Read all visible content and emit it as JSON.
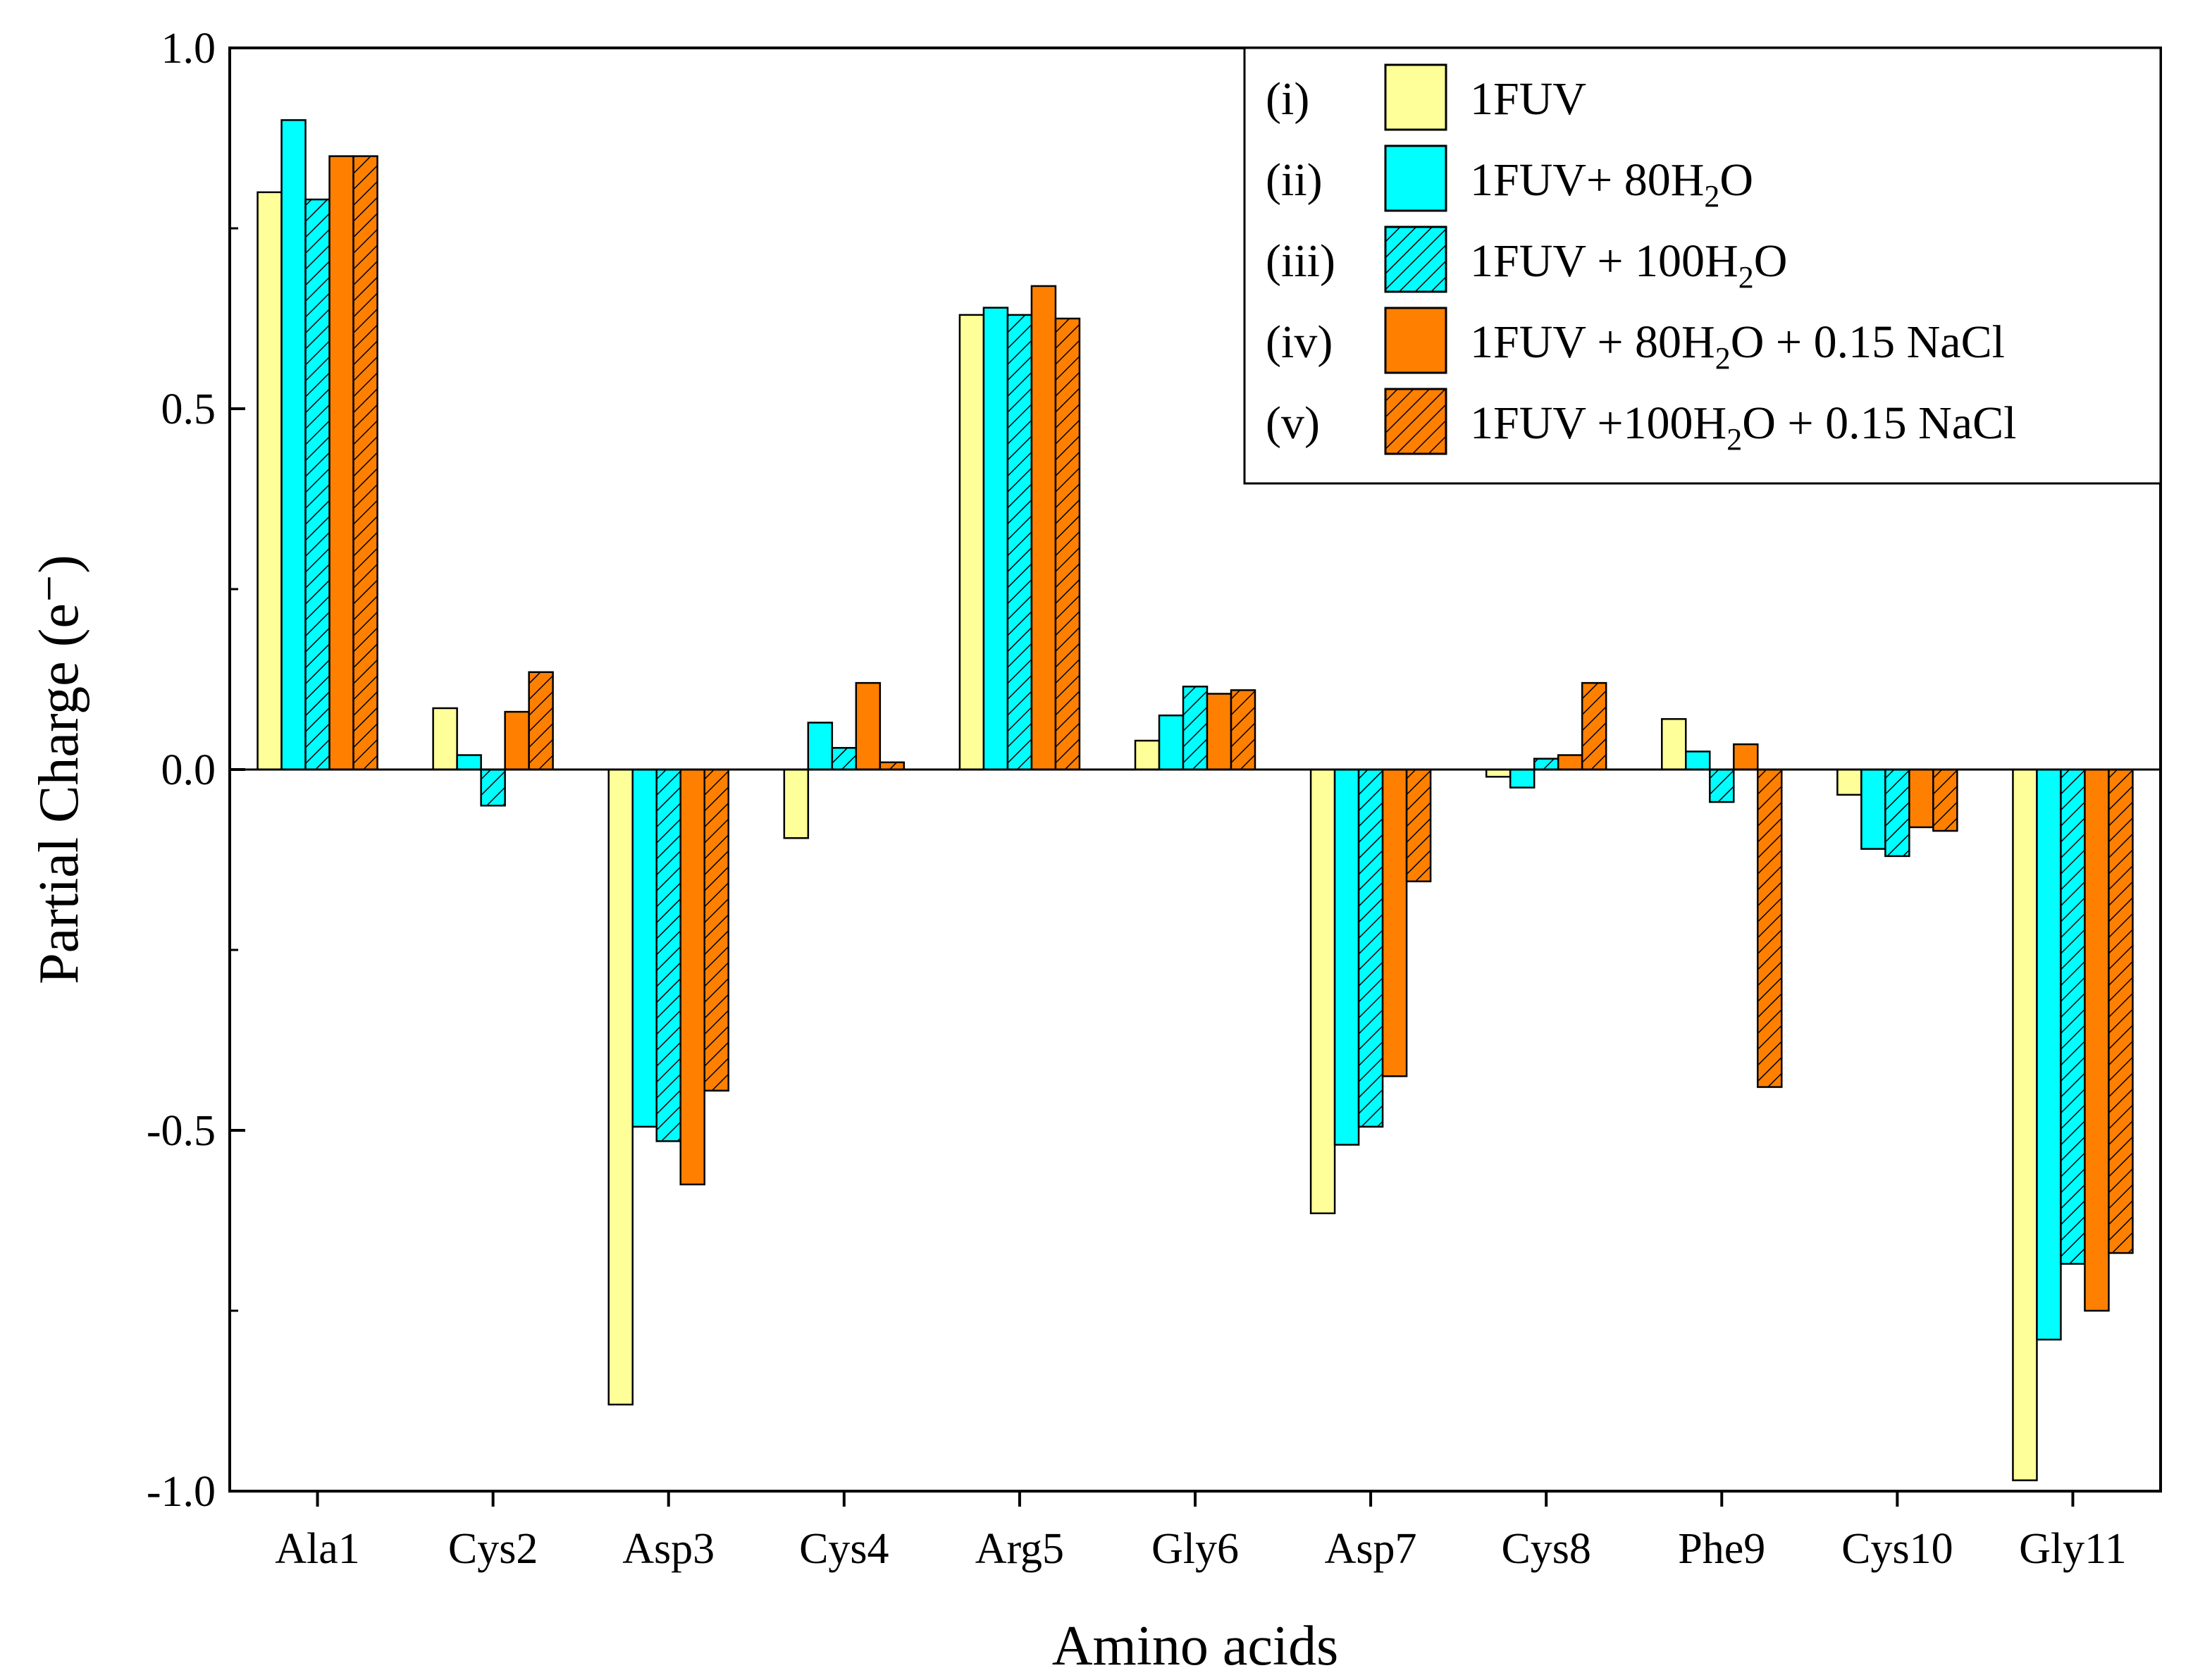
{
  "chart_data": {
    "type": "bar",
    "xlabel": "Amino acids",
    "ylabel": "Partial Charge (e⁻)",
    "ylim": [
      -1.0,
      1.0
    ],
    "yticks": [
      "1.0",
      "0.5",
      "0.0",
      "-0.5",
      "-1.0"
    ],
    "ytick_values": [
      1.0,
      0.5,
      0.0,
      -0.5,
      -1.0
    ],
    "grid": false,
    "legend_position": "top-right",
    "categories": [
      "Ala1",
      "Cys2",
      "Asp3",
      "Cys4",
      "Arg5",
      "Gly6",
      "Asp7",
      "Cys8",
      "Phe9",
      "Cys10",
      "Gly11"
    ],
    "series": [
      {
        "name": "1FUV",
        "legend_index": "(i)",
        "legend_parts": [
          "1FUV"
        ],
        "color": "#ffff99",
        "hatch": false,
        "values": [
          0.8,
          0.085,
          -0.88,
          -0.095,
          0.63,
          0.04,
          -0.615,
          -0.01,
          0.07,
          -0.035,
          -0.985
        ]
      },
      {
        "name": "1FUV+ 80H2O",
        "legend_index": "(ii)",
        "legend_parts": [
          "1FUV+ 80H",
          "2",
          "O"
        ],
        "color": "#00ffff",
        "hatch": false,
        "values": [
          0.9,
          0.02,
          -0.495,
          0.065,
          0.64,
          0.075,
          -0.52,
          -0.025,
          0.025,
          -0.11,
          -0.79
        ]
      },
      {
        "name": "1FUV + 100H2O",
        "legend_index": "(iii)",
        "legend_parts": [
          "1FUV + 100H",
          "2",
          "O"
        ],
        "color": "#00ffff",
        "hatch": true,
        "values": [
          0.79,
          -0.05,
          -0.515,
          0.03,
          0.63,
          0.115,
          -0.495,
          0.015,
          -0.045,
          -0.12,
          -0.685
        ]
      },
      {
        "name": "1FUV + 80H2O + 0.15 NaCl",
        "legend_index": "(iv)",
        "legend_parts": [
          "1FUV + 80H",
          "2",
          "O + 0.15 NaCl"
        ],
        "color": "#ff8000",
        "hatch": false,
        "values": [
          0.85,
          0.08,
          -0.575,
          0.12,
          0.67,
          0.105,
          -0.425,
          0.02,
          0.035,
          -0.08,
          -0.75
        ]
      },
      {
        "name": "1FUV +100H2O + 0.15 NaCl",
        "legend_index": "(v)",
        "legend_parts": [
          "1FUV +100H",
          "2",
          "O + 0.15 NaCl"
        ],
        "color": "#ff8000",
        "hatch": true,
        "values": [
          0.85,
          0.135,
          -0.445,
          0.01,
          0.625,
          0.11,
          -0.155,
          0.12,
          -0.44,
          -0.085,
          -0.67
        ]
      }
    ]
  }
}
